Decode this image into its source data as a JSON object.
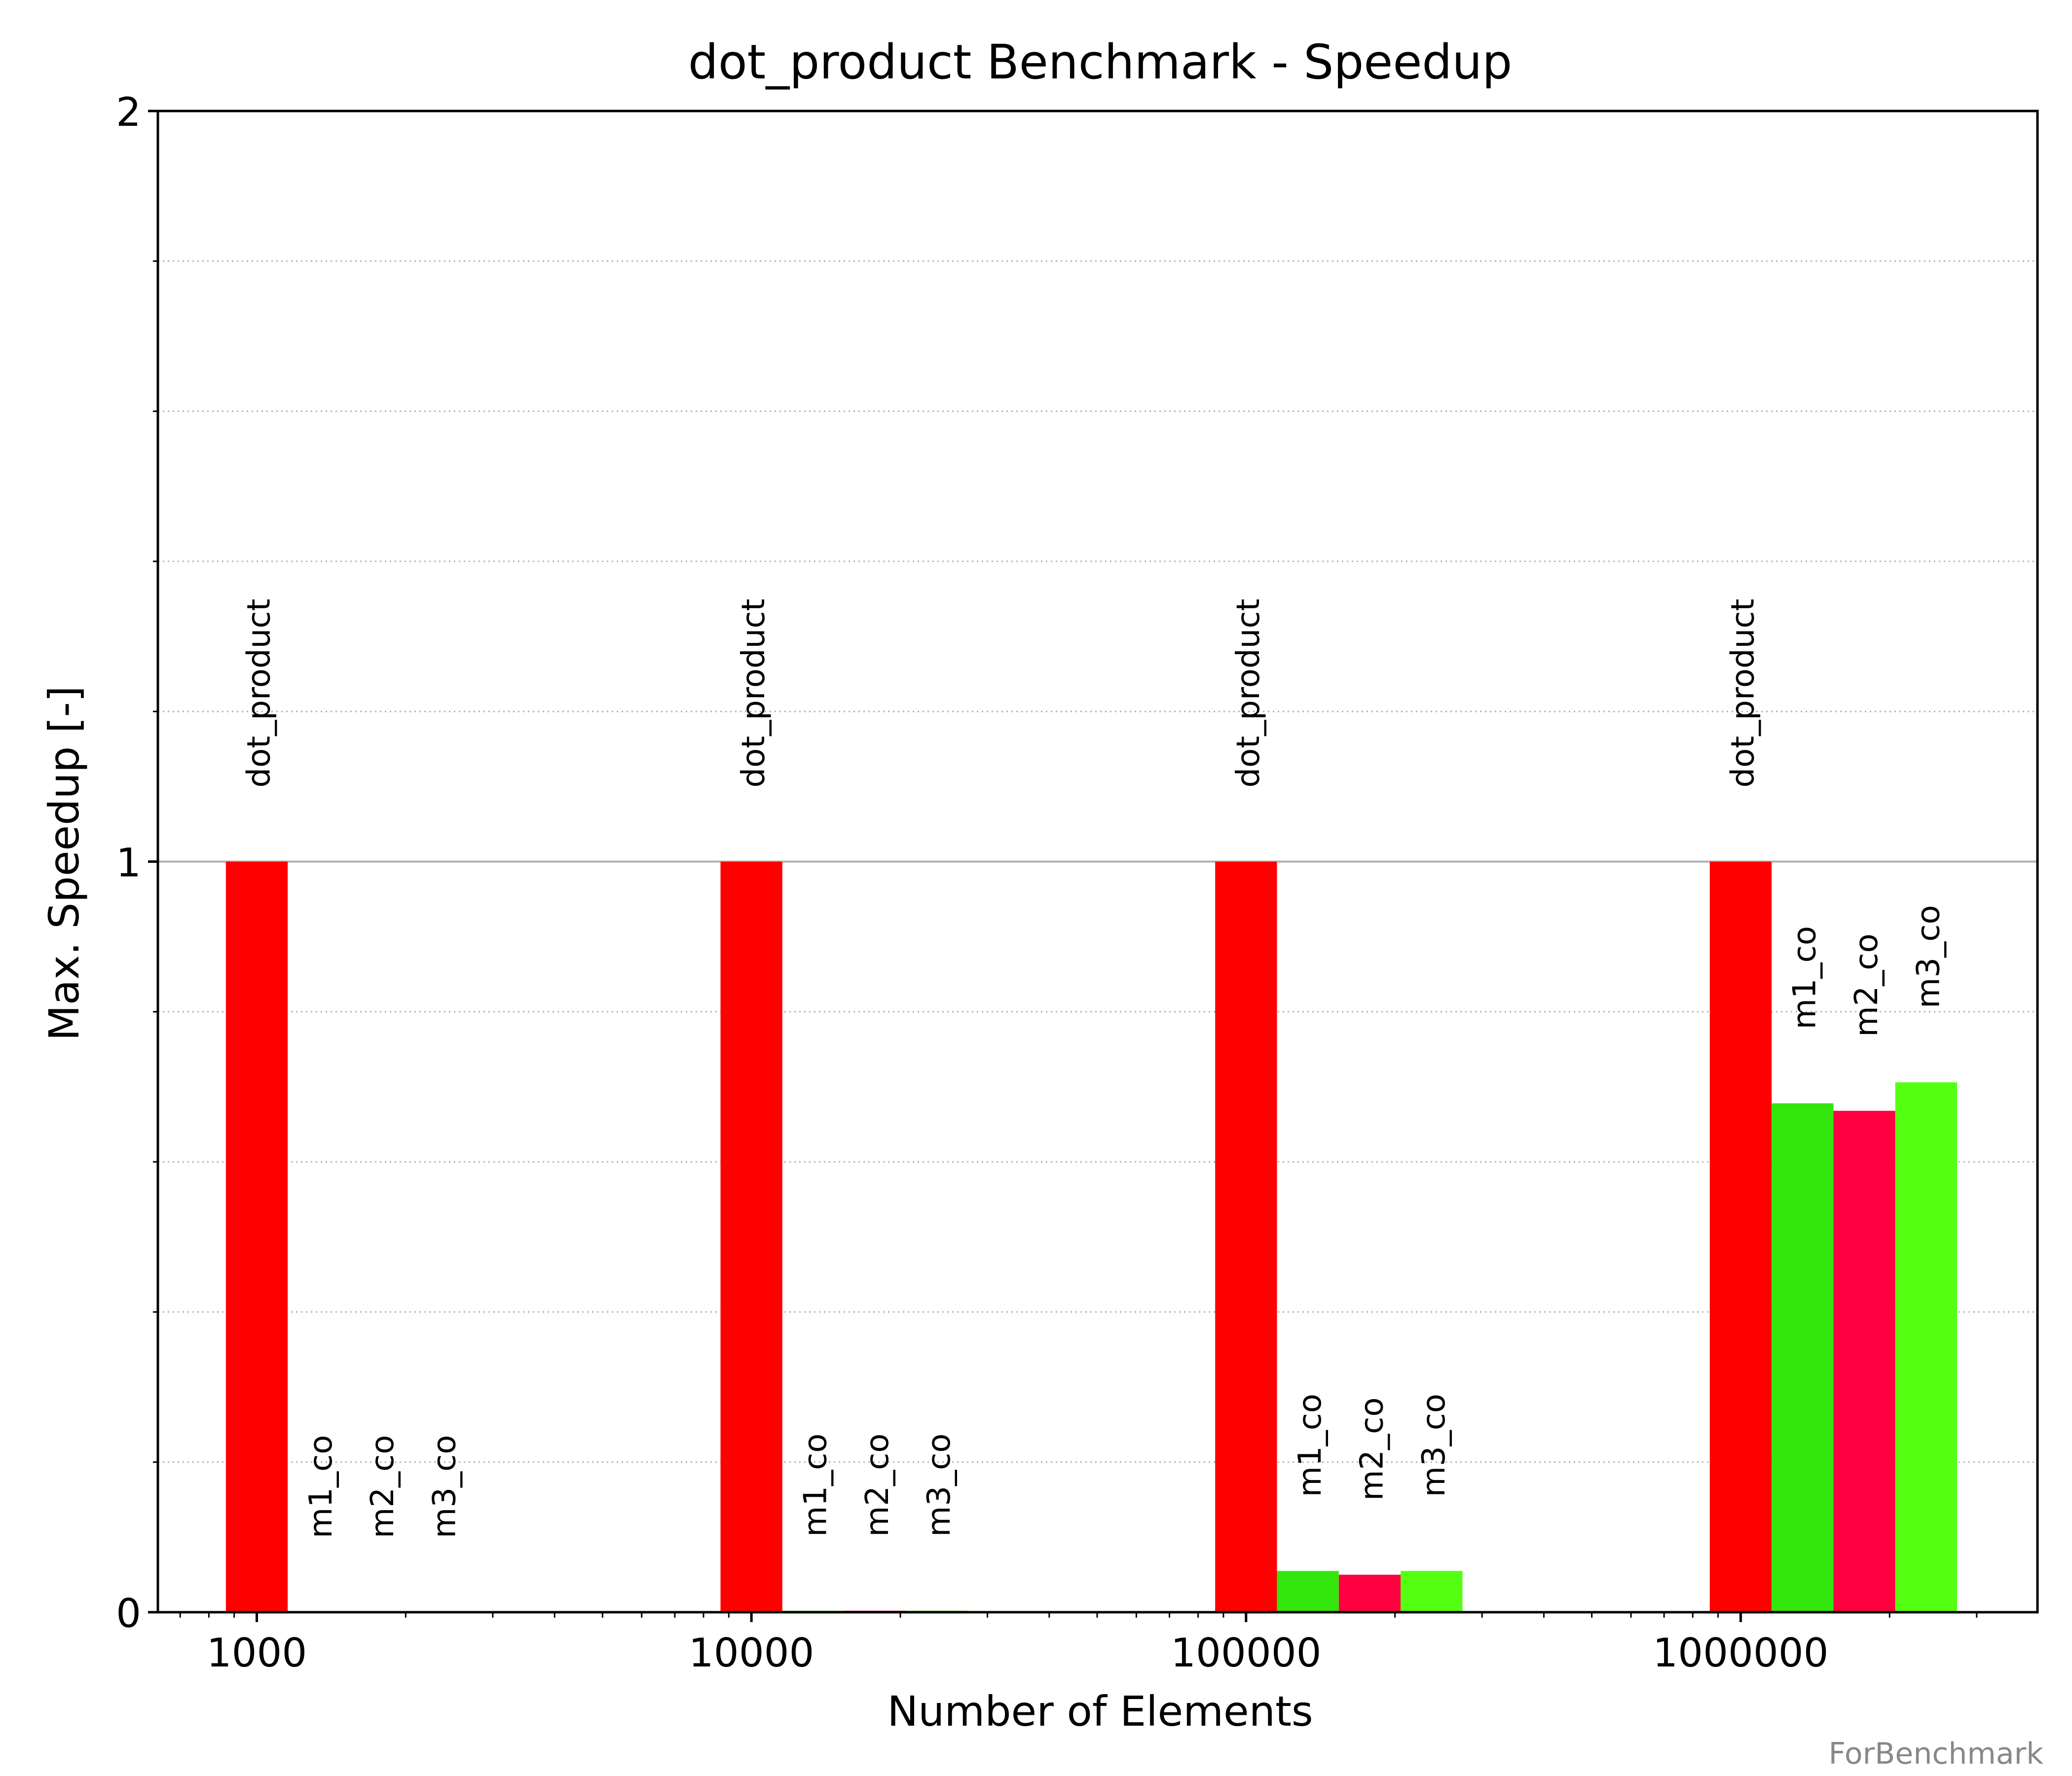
{
  "chart_data": {
    "type": "bar",
    "title": "dot_product Benchmark - Speedup",
    "xlabel": "Number of Elements",
    "ylabel": "Max. Speedup [-]",
    "xscale": "log",
    "categories": [
      "1000",
      "10000",
      "100000",
      "1000000"
    ],
    "x": [
      1000,
      10000,
      100000,
      1000000
    ],
    "ylim": [
      0,
      2
    ],
    "yticks": [
      "0",
      "1",
      "2"
    ],
    "grid": "y (dotted minor, solid at 1)",
    "series": [
      {
        "name": "dot_product",
        "color": "#ff0000",
        "values": [
          1.0,
          1.0,
          1.0,
          1.0
        ]
      },
      {
        "name": "m1_co",
        "color": "#33e60d",
        "values": [
          0.0,
          0.002,
          0.055,
          0.678
        ]
      },
      {
        "name": "m2_co",
        "color": "#ff0040",
        "values": [
          0.0,
          0.002,
          0.05,
          0.668
        ]
      },
      {
        "name": "m3_co",
        "color": "#55ff11",
        "values": [
          0.0,
          0.002,
          0.055,
          0.706
        ]
      }
    ]
  },
  "watermark": "ForBenchmark"
}
